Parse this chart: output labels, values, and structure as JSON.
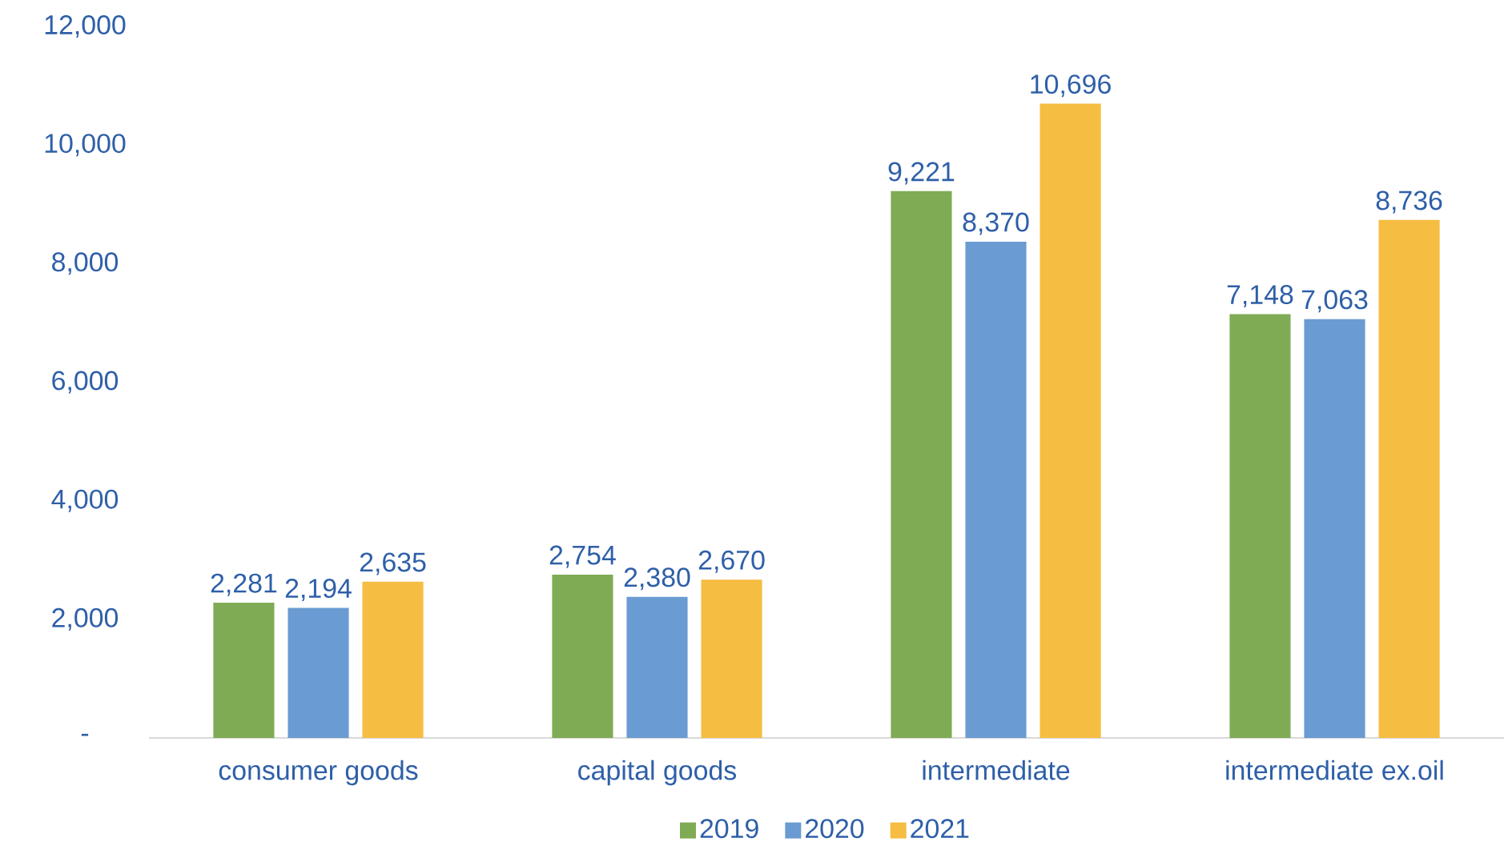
{
  "chart_data": {
    "type": "bar",
    "categories": [
      "consumer goods",
      "capital goods",
      "intermediate",
      "intermediate ex.oil"
    ],
    "series": [
      {
        "name": "2019",
        "color": "#7fab55",
        "values": [
          2281,
          2754,
          9221,
          7148
        ],
        "value_labels": [
          "2,281",
          "2,754",
          "9,221",
          "7,148"
        ]
      },
      {
        "name": "2020",
        "color": "#6a9bd2",
        "values": [
          2194,
          2380,
          8370,
          7063
        ],
        "value_labels": [
          "2,194",
          "2,380",
          "8,370",
          "7,063"
        ]
      },
      {
        "name": "2021",
        "color": "#f5bd42",
        "values": [
          2635,
          2670,
          10696,
          8736
        ],
        "value_labels": [
          "2,635",
          "2,670",
          "10,696",
          "8,736"
        ]
      }
    ],
    "ylim": [
      0,
      12000
    ],
    "yticks": [
      {
        "value": 0,
        "label": "-"
      },
      {
        "value": 2000,
        "label": "2,000"
      },
      {
        "value": 4000,
        "label": "4,000"
      },
      {
        "value": 6000,
        "label": "6,000"
      },
      {
        "value": 8000,
        "label": "8,000"
      },
      {
        "value": 10000,
        "label": "10,000"
      },
      {
        "value": 12000,
        "label": "12,000"
      }
    ],
    "grid": false,
    "legend": "bottom"
  }
}
